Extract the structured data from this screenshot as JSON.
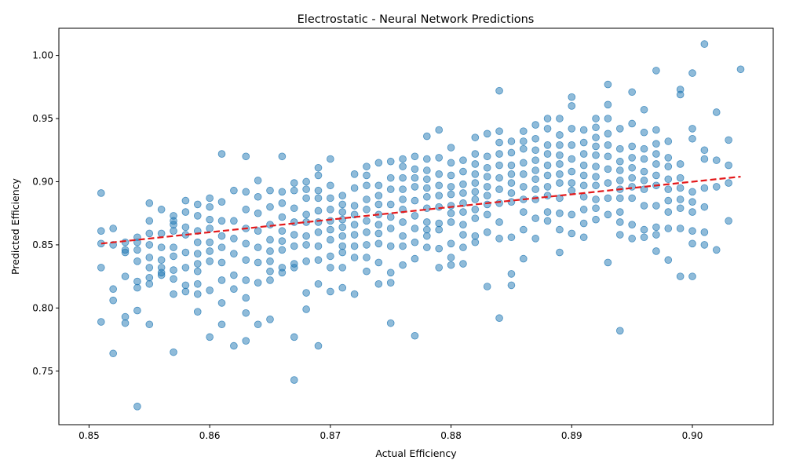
{
  "chart_data": {
    "type": "scatter",
    "title": "Electrostatic - Neural Network Predictions",
    "xlabel": "Actual Efficiency",
    "ylabel": "Predicted Efficiency",
    "xlim": [
      0.8475,
      0.9067
    ],
    "ylim": [
      0.7076,
      1.0215
    ],
    "xticks": [
      0.85,
      0.86,
      0.87,
      0.88,
      0.89,
      0.9
    ],
    "xtick_labels": [
      "0.85",
      "0.86",
      "0.87",
      "0.88",
      "0.89",
      "0.90"
    ],
    "yticks": [
      0.75,
      0.8,
      0.85,
      0.9,
      0.95,
      1.0
    ],
    "ytick_labels": [
      "0.75",
      "0.80",
      "0.85",
      "0.90",
      "0.95",
      "1.00"
    ],
    "grid": false,
    "marker_color": "#1f77b4",
    "marker_alpha": 0.5,
    "trend_line": {
      "color": "#e31a1c",
      "style": "dashed",
      "x": [
        0.851,
        0.904
      ],
      "y": [
        0.851,
        0.904
      ]
    },
    "points": {
      "x": [
        0.851,
        0.851,
        0.851,
        0.851,
        0.851,
        0.852,
        0.852,
        0.852,
        0.852,
        0.852,
        0.853,
        0.853,
        0.853,
        0.853,
        0.853,
        0.853,
        0.854,
        0.854,
        0.854,
        0.854,
        0.854,
        0.854,
        0.854,
        0.854,
        0.855,
        0.855,
        0.855,
        0.855,
        0.855,
        0.855,
        0.855,
        0.855,
        0.855,
        0.856,
        0.856,
        0.856,
        0.856,
        0.856,
        0.856,
        0.856,
        0.857,
        0.857,
        0.857,
        0.857,
        0.857,
        0.857,
        0.857,
        0.857,
        0.857,
        0.857,
        0.858,
        0.858,
        0.858,
        0.858,
        0.858,
        0.858,
        0.858,
        0.858,
        0.859,
        0.859,
        0.859,
        0.859,
        0.859,
        0.859,
        0.859,
        0.859,
        0.859,
        0.859,
        0.86,
        0.86,
        0.86,
        0.86,
        0.86,
        0.86,
        0.86,
        0.86,
        0.86,
        0.861,
        0.861,
        0.861,
        0.861,
        0.861,
        0.861,
        0.861,
        0.861,
        0.861,
        0.862,
        0.862,
        0.862,
        0.862,
        0.862,
        0.862,
        0.862,
        0.863,
        0.863,
        0.863,
        0.863,
        0.863,
        0.863,
        0.863,
        0.863,
        0.863,
        0.863,
        0.864,
        0.864,
        0.864,
        0.864,
        0.864,
        0.864,
        0.864,
        0.864,
        0.865,
        0.865,
        0.865,
        0.865,
        0.865,
        0.865,
        0.865,
        0.865,
        0.865,
        0.866,
        0.866,
        0.866,
        0.866,
        0.866,
        0.866,
        0.866,
        0.866,
        0.866,
        0.867,
        0.867,
        0.867,
        0.867,
        0.867,
        0.867,
        0.867,
        0.867,
        0.867,
        0.867,
        0.868,
        0.868,
        0.868,
        0.868,
        0.868,
        0.868,
        0.868,
        0.868,
        0.868,
        0.868,
        0.869,
        0.869,
        0.869,
        0.869,
        0.869,
        0.869,
        0.869,
        0.869,
        0.869,
        0.869,
        0.869,
        0.87,
        0.87,
        0.87,
        0.87,
        0.87,
        0.87,
        0.87,
        0.87,
        0.87,
        0.87,
        0.871,
        0.871,
        0.871,
        0.871,
        0.871,
        0.871,
        0.871,
        0.871,
        0.871,
        0.871,
        0.872,
        0.872,
        0.872,
        0.872,
        0.872,
        0.872,
        0.872,
        0.872,
        0.872,
        0.873,
        0.873,
        0.873,
        0.873,
        0.873,
        0.873,
        0.873,
        0.873,
        0.873,
        0.873,
        0.874,
        0.874,
        0.874,
        0.874,
        0.874,
        0.874,
        0.874,
        0.874,
        0.874,
        0.874,
        0.875,
        0.875,
        0.875,
        0.875,
        0.875,
        0.875,
        0.875,
        0.875,
        0.875,
        0.875,
        0.876,
        0.876,
        0.876,
        0.876,
        0.876,
        0.876,
        0.876,
        0.876,
        0.876,
        0.876,
        0.877,
        0.877,
        0.877,
        0.877,
        0.877,
        0.877,
        0.877,
        0.877,
        0.877,
        0.877,
        0.878,
        0.878,
        0.878,
        0.878,
        0.878,
        0.878,
        0.878,
        0.878,
        0.878,
        0.878,
        0.878,
        0.879,
        0.879,
        0.879,
        0.879,
        0.879,
        0.879,
        0.879,
        0.879,
        0.879,
        0.879,
        0.88,
        0.88,
        0.88,
        0.88,
        0.88,
        0.88,
        0.88,
        0.88,
        0.88,
        0.88,
        0.88,
        0.881,
        0.881,
        0.881,
        0.881,
        0.881,
        0.881,
        0.881,
        0.881,
        0.881,
        0.881,
        0.882,
        0.882,
        0.882,
        0.882,
        0.882,
        0.882,
        0.882,
        0.882,
        0.882,
        0.882,
        0.882,
        0.883,
        0.883,
        0.883,
        0.883,
        0.883,
        0.883,
        0.883,
        0.883,
        0.883,
        0.883,
        0.884,
        0.884,
        0.884,
        0.884,
        0.884,
        0.884,
        0.884,
        0.884,
        0.884,
        0.884,
        0.884,
        0.885,
        0.885,
        0.885,
        0.885,
        0.885,
        0.885,
        0.885,
        0.885,
        0.885,
        0.885,
        0.886,
        0.886,
        0.886,
        0.886,
        0.886,
        0.886,
        0.886,
        0.886,
        0.886,
        0.886,
        0.887,
        0.887,
        0.887,
        0.887,
        0.887,
        0.887,
        0.887,
        0.887,
        0.887,
        0.887,
        0.888,
        0.888,
        0.888,
        0.888,
        0.888,
        0.888,
        0.888,
        0.888,
        0.888,
        0.888,
        0.889,
        0.889,
        0.889,
        0.889,
        0.889,
        0.889,
        0.889,
        0.889,
        0.889,
        0.889,
        0.889,
        0.89,
        0.89,
        0.89,
        0.89,
        0.89,
        0.89,
        0.89,
        0.89,
        0.89,
        0.89,
        0.891,
        0.891,
        0.891,
        0.891,
        0.891,
        0.891,
        0.891,
        0.891,
        0.891,
        0.891,
        0.892,
        0.892,
        0.892,
        0.892,
        0.892,
        0.892,
        0.892,
        0.892,
        0.892,
        0.892,
        0.892,
        0.893,
        0.893,
        0.893,
        0.893,
        0.893,
        0.893,
        0.893,
        0.893,
        0.893,
        0.893,
        0.893,
        0.894,
        0.894,
        0.894,
        0.894,
        0.894,
        0.894,
        0.894,
        0.894,
        0.894,
        0.894,
        0.894,
        0.895,
        0.895,
        0.895,
        0.895,
        0.895,
        0.895,
        0.895,
        0.895,
        0.895,
        0.895,
        0.896,
        0.896,
        0.896,
        0.896,
        0.896,
        0.896,
        0.896,
        0.896,
        0.896,
        0.896,
        0.897,
        0.897,
        0.897,
        0.897,
        0.897,
        0.897,
        0.897,
        0.897,
        0.897,
        0.897,
        0.897,
        0.898,
        0.898,
        0.898,
        0.898,
        0.898,
        0.898,
        0.898,
        0.898,
        0.898,
        0.899,
        0.899,
        0.899,
        0.899,
        0.899,
        0.899,
        0.899,
        0.899,
        0.899,
        0.9,
        0.9,
        0.9,
        0.9,
        0.9,
        0.9,
        0.9,
        0.9,
        0.9,
        0.901,
        0.901,
        0.901,
        0.901,
        0.901,
        0.901,
        0.901,
        0.902,
        0.902,
        0.902,
        0.902,
        0.903,
        0.903,
        0.903,
        0.903,
        0.904
      ],
      "y": [
        0.891,
        0.861,
        0.851,
        0.832,
        0.789,
        0.863,
        0.85,
        0.815,
        0.806,
        0.764,
        0.852,
        0.846,
        0.844,
        0.825,
        0.793,
        0.788,
        0.856,
        0.852,
        0.846,
        0.837,
        0.821,
        0.816,
        0.798,
        0.722,
        0.883,
        0.869,
        0.859,
        0.85,
        0.84,
        0.832,
        0.824,
        0.819,
        0.787,
        0.878,
        0.859,
        0.848,
        0.838,
        0.832,
        0.828,
        0.826,
        0.873,
        0.869,
        0.866,
        0.861,
        0.848,
        0.841,
        0.83,
        0.823,
        0.811,
        0.765,
        0.885,
        0.876,
        0.864,
        0.858,
        0.844,
        0.832,
        0.818,
        0.813,
        0.882,
        0.873,
        0.861,
        0.852,
        0.843,
        0.835,
        0.829,
        0.819,
        0.811,
        0.797,
        0.887,
        0.88,
        0.87,
        0.863,
        0.852,
        0.845,
        0.837,
        0.814,
        0.777,
        0.922,
        0.884,
        0.869,
        0.857,
        0.848,
        0.836,
        0.822,
        0.804,
        0.787,
        0.893,
        0.869,
        0.855,
        0.843,
        0.826,
        0.815,
        0.77,
        0.92,
        0.892,
        0.878,
        0.863,
        0.851,
        0.838,
        0.822,
        0.808,
        0.796,
        0.774,
        0.901,
        0.888,
        0.875,
        0.861,
        0.848,
        0.836,
        0.82,
        0.787,
        0.893,
        0.88,
        0.866,
        0.854,
        0.845,
        0.837,
        0.829,
        0.822,
        0.791,
        0.92,
        0.892,
        0.883,
        0.872,
        0.861,
        0.853,
        0.846,
        0.832,
        0.828,
        0.899,
        0.893,
        0.879,
        0.868,
        0.858,
        0.849,
        0.835,
        0.832,
        0.777,
        0.743,
        0.9,
        0.894,
        0.887,
        0.874,
        0.868,
        0.857,
        0.85,
        0.837,
        0.812,
        0.799,
        0.911,
        0.905,
        0.893,
        0.887,
        0.877,
        0.868,
        0.86,
        0.849,
        0.838,
        0.819,
        0.77,
        0.918,
        0.897,
        0.887,
        0.878,
        0.869,
        0.862,
        0.854,
        0.841,
        0.832,
        0.813,
        0.889,
        0.882,
        0.876,
        0.87,
        0.864,
        0.857,
        0.849,
        0.844,
        0.832,
        0.816,
        0.906,
        0.895,
        0.881,
        0.874,
        0.866,
        0.858,
        0.849,
        0.84,
        0.811,
        0.912,
        0.905,
        0.897,
        0.886,
        0.878,
        0.869,
        0.86,
        0.85,
        0.84,
        0.829,
        0.915,
        0.897,
        0.889,
        0.882,
        0.874,
        0.866,
        0.859,
        0.851,
        0.836,
        0.819,
        0.916,
        0.903,
        0.894,
        0.882,
        0.872,
        0.863,
        0.849,
        0.828,
        0.82,
        0.788,
        0.918,
        0.912,
        0.903,
        0.894,
        0.886,
        0.878,
        0.868,
        0.857,
        0.849,
        0.834,
        0.92,
        0.91,
        0.903,
        0.896,
        0.885,
        0.873,
        0.863,
        0.852,
        0.839,
        0.778,
        0.936,
        0.918,
        0.909,
        0.902,
        0.895,
        0.888,
        0.879,
        0.868,
        0.862,
        0.857,
        0.848,
        0.941,
        0.919,
        0.906,
        0.897,
        0.889,
        0.88,
        0.867,
        0.862,
        0.847,
        0.832,
        0.927,
        0.915,
        0.905,
        0.896,
        0.89,
        0.881,
        0.875,
        0.868,
        0.851,
        0.84,
        0.834,
        0.917,
        0.908,
        0.898,
        0.891,
        0.883,
        0.876,
        0.866,
        0.858,
        0.848,
        0.835,
        0.935,
        0.922,
        0.914,
        0.906,
        0.899,
        0.892,
        0.886,
        0.878,
        0.871,
        0.857,
        0.852,
        0.938,
        0.92,
        0.911,
        0.904,
        0.896,
        0.889,
        0.882,
        0.874,
        0.86,
        0.817,
        0.972,
        0.94,
        0.931,
        0.922,
        0.913,
        0.903,
        0.894,
        0.883,
        0.868,
        0.855,
        0.792,
        0.932,
        0.923,
        0.913,
        0.906,
        0.899,
        0.891,
        0.884,
        0.856,
        0.827,
        0.818,
        0.94,
        0.932,
        0.926,
        0.915,
        0.906,
        0.896,
        0.886,
        0.876,
        0.862,
        0.839,
        0.945,
        0.934,
        0.925,
        0.917,
        0.909,
        0.902,
        0.894,
        0.886,
        0.871,
        0.855,
        0.95,
        0.942,
        0.929,
        0.922,
        0.913,
        0.905,
        0.896,
        0.889,
        0.876,
        0.869,
        0.95,
        0.937,
        0.929,
        0.921,
        0.914,
        0.906,
        0.899,
        0.887,
        0.875,
        0.862,
        0.844,
        0.967,
        0.96,
        0.942,
        0.929,
        0.918,
        0.908,
        0.899,
        0.893,
        0.874,
        0.859,
        0.941,
        0.931,
        0.922,
        0.913,
        0.905,
        0.897,
        0.888,
        0.878,
        0.867,
        0.856,
        0.95,
        0.943,
        0.935,
        0.928,
        0.921,
        0.912,
        0.904,
        0.897,
        0.886,
        0.879,
        0.87,
        0.977,
        0.961,
        0.95,
        0.938,
        0.929,
        0.92,
        0.91,
        0.899,
        0.887,
        0.874,
        0.836,
        0.942,
        0.926,
        0.916,
        0.909,
        0.901,
        0.894,
        0.887,
        0.876,
        0.868,
        0.858,
        0.782,
        0.971,
        0.946,
        0.928,
        0.919,
        0.911,
        0.903,
        0.896,
        0.887,
        0.866,
        0.855,
        0.957,
        0.939,
        0.926,
        0.918,
        0.908,
        0.901,
        0.894,
        0.881,
        0.862,
        0.856,
        0.988,
        0.941,
        0.93,
        0.922,
        0.914,
        0.905,
        0.897,
        0.881,
        0.864,
        0.858,
        0.845,
        0.932,
        0.919,
        0.912,
        0.902,
        0.894,
        0.885,
        0.876,
        0.863,
        0.838,
        0.973,
        0.969,
        0.914,
        0.903,
        0.895,
        0.886,
        0.879,
        0.863,
        0.825,
        0.986,
        0.942,
        0.934,
        0.892,
        0.884,
        0.876,
        0.861,
        0.851,
        0.825,
        1.009,
        0.925,
        0.918,
        0.895,
        0.88,
        0.86,
        0.85,
        0.955,
        0.917,
        0.896,
        0.846,
        0.933,
        0.913,
        0.899,
        0.869,
        0.989
      ]
    }
  }
}
